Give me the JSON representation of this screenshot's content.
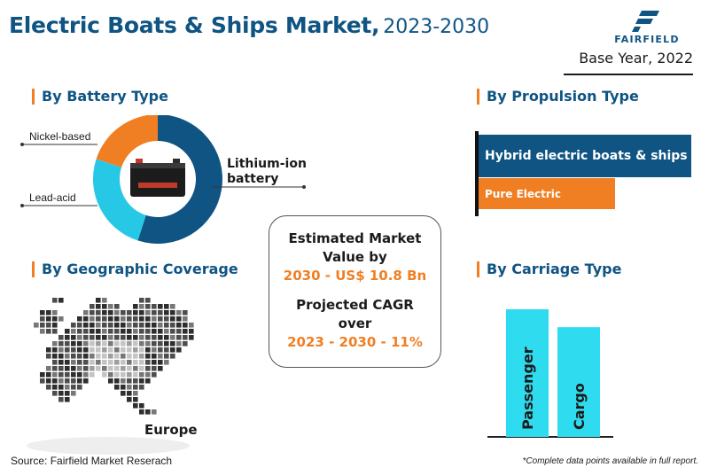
{
  "header": {
    "title": "Electric Boats & Ships Market,",
    "years": "2023-2030",
    "logo_text": "FAIRFIELD",
    "base_year": "Base Year, 2022"
  },
  "colors": {
    "brand_blue": "#0f5483",
    "accent_orange": "#f07f24",
    "cyan": "#27c8e6",
    "bright_cyan": "#2fdcef"
  },
  "sections": {
    "battery": "By Battery Type",
    "propulsion": "By Propulsion Type",
    "geography": "By Geographic Coverage",
    "carriage": "By Carriage Type"
  },
  "center_box": {
    "line1": "Estimated Market",
    "line2": "Value by",
    "line3": "2030 - US$ 10.8 Bn",
    "line4": "Projected CAGR",
    "line5": "over",
    "line6": "2023 - 2030 - 11%"
  },
  "region": "Europe",
  "footer": {
    "source": "Source: Fairfield Market Reserach",
    "note": "*Complete data points available in full report."
  },
  "icons": [
    "fairfield-logo-icon",
    "battery-icon",
    "europe-map-icon"
  ],
  "chart_data": [
    {
      "type": "pie",
      "categories": [
        "Lithium-ion battery",
        "Lead-acid",
        "Nickel-based"
      ],
      "values": [
        55,
        25,
        20
      ],
      "colors": [
        "#0f5483",
        "#27c8e6",
        "#f07f24"
      ]
    },
    {
      "type": "bar",
      "orientation": "horizontal",
      "categories": [
        "Hybrid electric boats & ships",
        "Pure Electric"
      ],
      "values": [
        100,
        64
      ],
      "colors": [
        "#0f5483",
        "#f07f24"
      ]
    },
    {
      "type": "bar",
      "orientation": "vertical",
      "categories": [
        "Passenger",
        "Cargo"
      ],
      "values": [
        100,
        86
      ],
      "colors": [
        "#2fdcef",
        "#2fdcef"
      ]
    }
  ]
}
